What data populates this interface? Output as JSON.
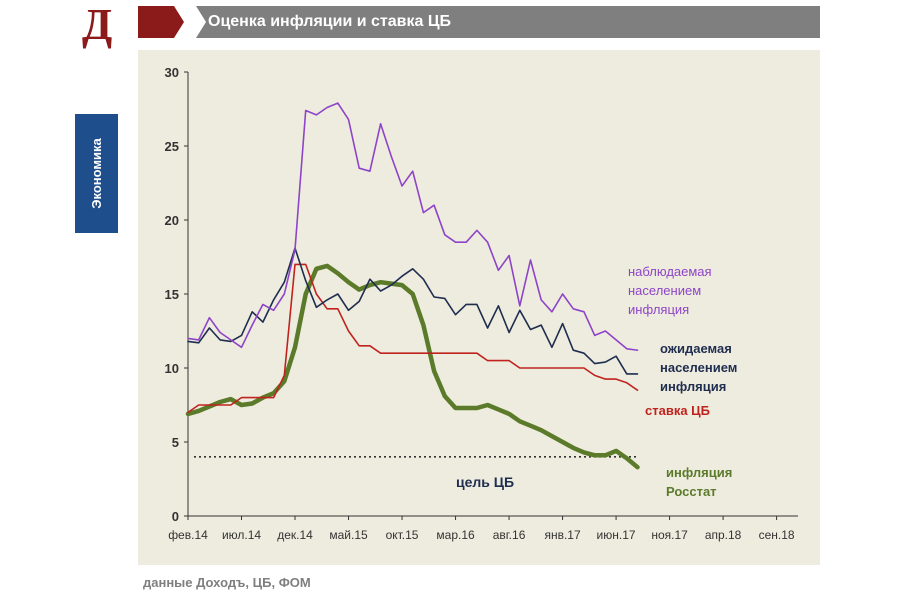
{
  "header": {
    "logo_letter": "Д",
    "title": "Оценка инфляции и ставка ЦБ"
  },
  "side_tab": {
    "label": "Экономика"
  },
  "source_note": "данные Доходъ, ЦБ, ФОМ",
  "colors": {
    "header_band": "#7f7f7f",
    "header_accent": "#8b1a1a",
    "logo": "#8b1a1a",
    "side_tab": "#1f4e8c",
    "panel": "#eeecdf"
  },
  "chart_data": {
    "type": "line",
    "title": "",
    "xlabel": "",
    "ylabel": "",
    "ylim": [
      0,
      30
    ],
    "yticks": [
      0,
      5,
      10,
      15,
      20,
      25,
      30
    ],
    "xlim": [
      "2014-02",
      "2018-11"
    ],
    "x_tick_labels": [
      "фев.14",
      "июл.14",
      "дек.14",
      "май.15",
      "окт.15",
      "мар.16",
      "авг.16",
      "янв.17",
      "июн.17",
      "ноя.17",
      "апр.18",
      "сен.18"
    ],
    "grid": false,
    "legend": "inline labels at line ends",
    "reference_line": {
      "label": "цель ЦБ",
      "value": 4,
      "style": "dotted",
      "color": "#333333"
    },
    "series": [
      {
        "name": "наблюдаемая населением инфляция",
        "color": "#8e44c8",
        "width": 1.6,
        "label_lines": [
          "наблюдаемая",
          "населением",
          "инфляция"
        ],
        "x": [
          "2014-02",
          "2014-03",
          "2014-04",
          "2014-05",
          "2014-06",
          "2014-07",
          "2014-08",
          "2014-09",
          "2014-10",
          "2014-11",
          "2014-12",
          "2015-01",
          "2015-02",
          "2015-03",
          "2015-04",
          "2015-05",
          "2015-06",
          "2015-07",
          "2015-08",
          "2015-09",
          "2015-10",
          "2015-11",
          "2015-12",
          "2016-01",
          "2016-02",
          "2016-03",
          "2016-04",
          "2016-05",
          "2016-06",
          "2016-07",
          "2016-08",
          "2016-09",
          "2016-10",
          "2016-11",
          "2016-12",
          "2017-01",
          "2017-02",
          "2017-03",
          "2017-04",
          "2017-05",
          "2017-06",
          "2017-07",
          "2017-08"
        ],
        "y": [
          12.0,
          11.9,
          13.4,
          12.4,
          11.9,
          11.4,
          12.9,
          14.3,
          13.9,
          15.0,
          18.0,
          27.4,
          27.1,
          27.6,
          27.9,
          26.8,
          23.5,
          23.3,
          26.5,
          24.3,
          22.3,
          23.3,
          20.5,
          21.0,
          19.0,
          18.5,
          18.5,
          19.3,
          18.5,
          16.6,
          17.6,
          14.2,
          17.3,
          14.6,
          13.8,
          15.0,
          14.0,
          13.8,
          12.2,
          12.5,
          11.9,
          11.3,
          11.2
        ]
      },
      {
        "name": "ожидаемая населением инфляция",
        "color": "#1f2d4f",
        "width": 1.6,
        "label_lines": [
          "ожидаемая",
          "населением",
          "инфляция"
        ],
        "x": [
          "2014-02",
          "2014-03",
          "2014-04",
          "2014-05",
          "2014-06",
          "2014-07",
          "2014-08",
          "2014-09",
          "2014-10",
          "2014-11",
          "2014-12",
          "2015-01",
          "2015-02",
          "2015-03",
          "2015-04",
          "2015-05",
          "2015-06",
          "2015-07",
          "2015-08",
          "2015-09",
          "2015-10",
          "2015-11",
          "2015-12",
          "2016-01",
          "2016-02",
          "2016-03",
          "2016-04",
          "2016-05",
          "2016-06",
          "2016-07",
          "2016-08",
          "2016-09",
          "2016-10",
          "2016-11",
          "2016-12",
          "2017-01",
          "2017-02",
          "2017-03",
          "2017-04",
          "2017-05",
          "2017-06",
          "2017-07",
          "2017-08"
        ],
        "y": [
          11.8,
          11.7,
          12.7,
          11.9,
          11.8,
          12.2,
          13.8,
          13.1,
          14.6,
          15.8,
          18.1,
          15.9,
          14.1,
          14.6,
          15.0,
          13.9,
          14.5,
          16.0,
          15.2,
          15.6,
          16.2,
          16.7,
          16.0,
          14.8,
          14.7,
          13.6,
          14.3,
          14.3,
          12.7,
          14.2,
          12.4,
          13.9,
          12.6,
          12.9,
          11.4,
          13.0,
          11.2,
          11.0,
          10.3,
          10.4,
          10.8,
          9.6,
          9.6
        ]
      },
      {
        "name": "ставка ЦБ",
        "color": "#c0231e",
        "width": 1.6,
        "label_lines": [
          "ставка  ЦБ"
        ],
        "x": [
          "2014-02",
          "2014-03",
          "2014-04",
          "2014-05",
          "2014-06",
          "2014-07",
          "2014-08",
          "2014-09",
          "2014-10",
          "2014-11",
          "2014-12",
          "2015-01",
          "2015-02",
          "2015-03",
          "2015-04",
          "2015-05",
          "2015-06",
          "2015-07",
          "2015-08",
          "2015-09",
          "2015-10",
          "2015-11",
          "2015-12",
          "2016-01",
          "2016-02",
          "2016-03",
          "2016-04",
          "2016-05",
          "2016-06",
          "2016-07",
          "2016-08",
          "2016-09",
          "2016-10",
          "2016-11",
          "2016-12",
          "2017-01",
          "2017-02",
          "2017-03",
          "2017-04",
          "2017-05",
          "2017-06",
          "2017-07",
          "2017-08"
        ],
        "y": [
          7.0,
          7.5,
          7.5,
          7.5,
          7.5,
          8.0,
          8.0,
          8.0,
          8.0,
          9.5,
          17.0,
          17.0,
          15.0,
          14.0,
          14.0,
          12.5,
          11.5,
          11.5,
          11.0,
          11.0,
          11.0,
          11.0,
          11.0,
          11.0,
          11.0,
          11.0,
          11.0,
          11.0,
          10.5,
          10.5,
          10.5,
          10.0,
          10.0,
          10.0,
          10.0,
          10.0,
          10.0,
          10.0,
          9.5,
          9.25,
          9.25,
          9.0,
          8.5
        ]
      },
      {
        "name": "инфляция Росстат",
        "color": "#5b7a2a",
        "width": 4.5,
        "label_lines": [
          "инфляция",
          "Росстат"
        ],
        "x": [
          "2014-02",
          "2014-03",
          "2014-04",
          "2014-05",
          "2014-06",
          "2014-07",
          "2014-08",
          "2014-09",
          "2014-10",
          "2014-11",
          "2014-12",
          "2015-01",
          "2015-02",
          "2015-03",
          "2015-04",
          "2015-05",
          "2015-06",
          "2015-07",
          "2015-08",
          "2015-09",
          "2015-10",
          "2015-11",
          "2015-12",
          "2016-01",
          "2016-02",
          "2016-03",
          "2016-04",
          "2016-05",
          "2016-06",
          "2016-07",
          "2016-08",
          "2016-09",
          "2016-10",
          "2016-11",
          "2016-12",
          "2017-01",
          "2017-02",
          "2017-03",
          "2017-04",
          "2017-05",
          "2017-06",
          "2017-07",
          "2017-08"
        ],
        "y": [
          6.9,
          7.1,
          7.4,
          7.7,
          7.9,
          7.5,
          7.6,
          8.0,
          8.3,
          9.1,
          11.4,
          15.0,
          16.7,
          16.9,
          16.4,
          15.8,
          15.3,
          15.6,
          15.8,
          15.7,
          15.6,
          15.0,
          12.9,
          9.8,
          8.1,
          7.3,
          7.3,
          7.3,
          7.5,
          7.2,
          6.9,
          6.4,
          6.1,
          5.8,
          5.4,
          5.0,
          4.6,
          4.3,
          4.1,
          4.1,
          4.4,
          3.9,
          3.3
        ]
      }
    ]
  }
}
